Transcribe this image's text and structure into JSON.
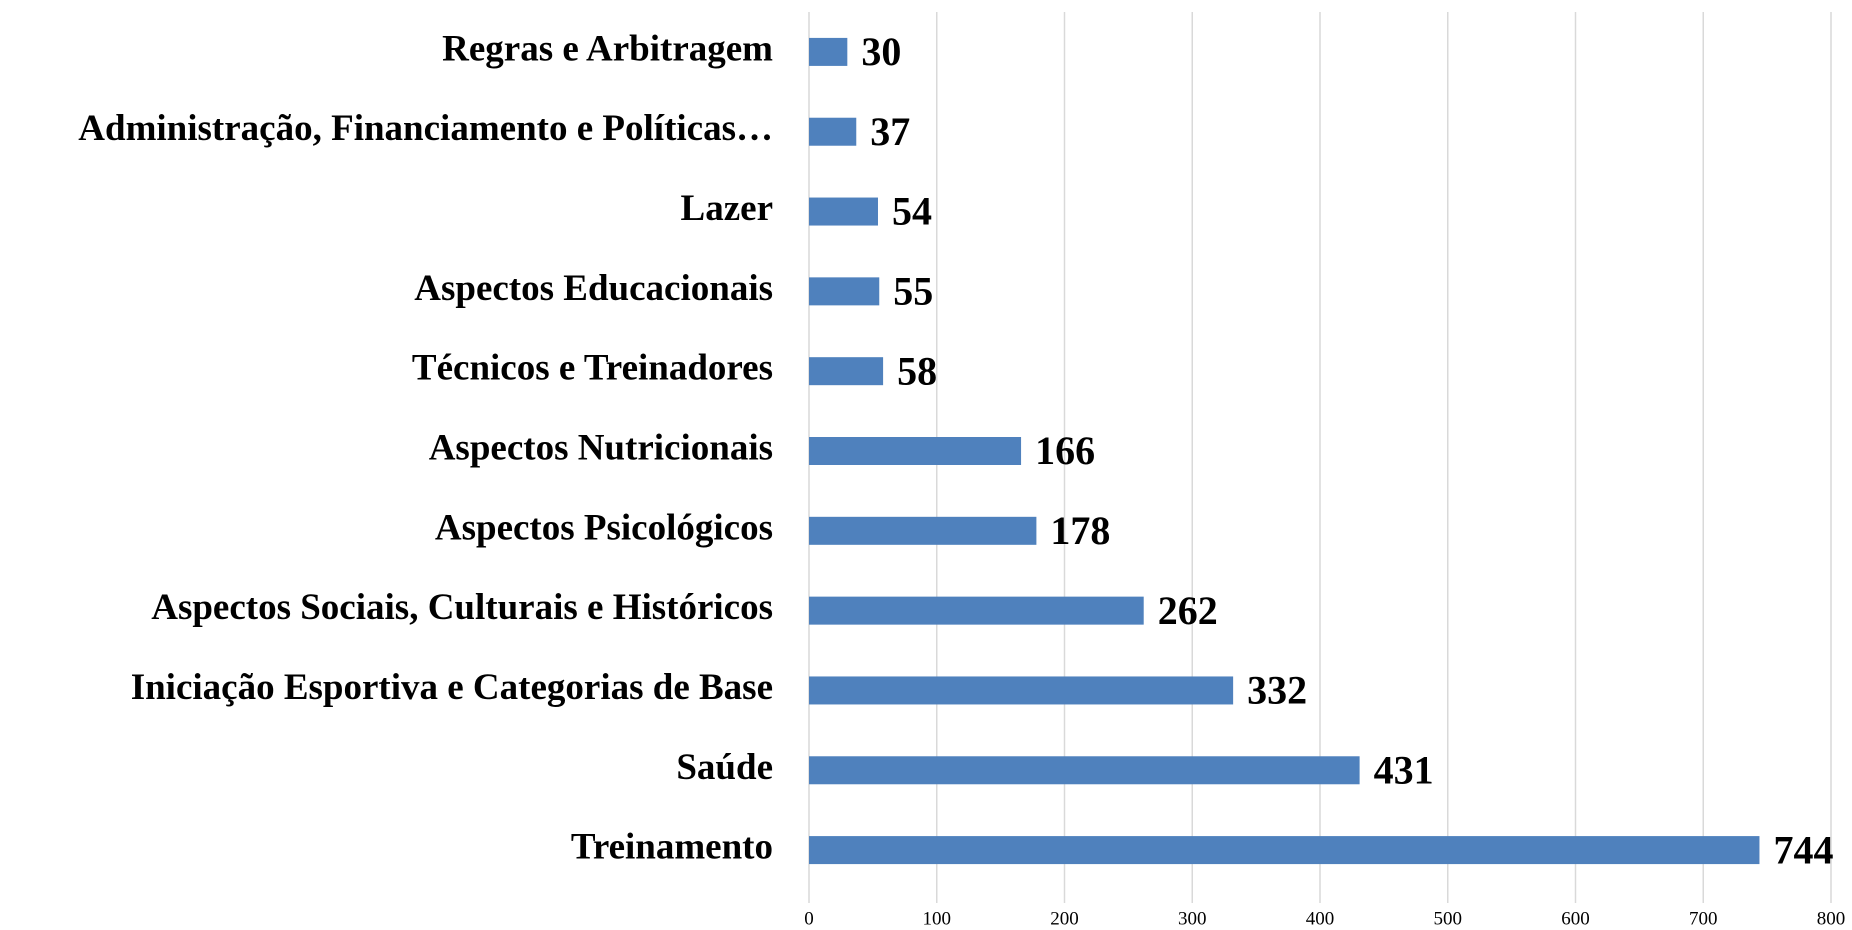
{
  "chart_data": {
    "type": "bar",
    "orientation": "horizontal",
    "categories": [
      "Regras e Arbitragem",
      "Administração, Financiamento e Políticas…",
      "Lazer",
      "Aspectos Educacionais",
      "Técnicos e Treinadores",
      "Aspectos Nutricionais",
      "Aspectos Psicológicos",
      "Aspectos Sociais, Culturais e Históricos",
      "Iniciação Esportiva e Categorias de Base",
      "Saúde",
      "Treinamento"
    ],
    "values": [
      30,
      37,
      54,
      55,
      58,
      166,
      178,
      262,
      332,
      431,
      744
    ],
    "color": "#4f81bd",
    "xlim": [
      0,
      800
    ],
    "xticks": [
      0,
      100,
      200,
      300,
      400,
      500,
      600,
      700,
      800
    ],
    "grid": true
  }
}
